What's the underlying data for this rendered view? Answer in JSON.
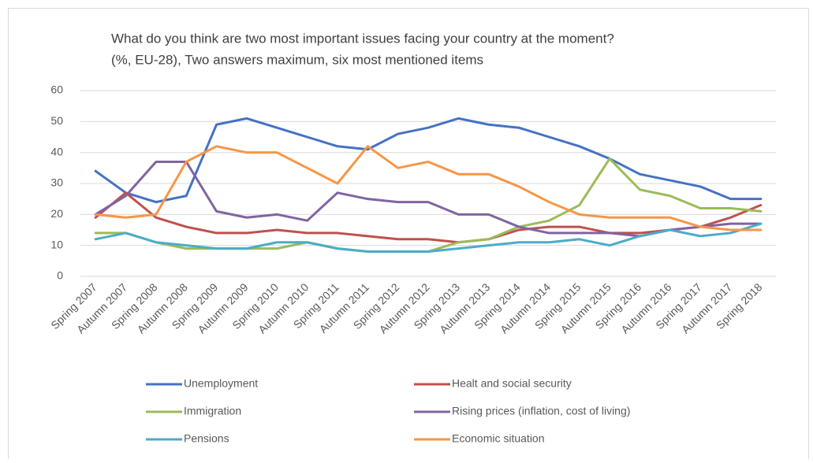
{
  "chart_data": {
    "type": "line",
    "title": "What do you think are two most important issues facing your country at the moment?",
    "subtitle": "(%, EU-28), Two answers maximum, six most mentioned items",
    "categories": [
      "Spring 2007",
      "Autumn 2007",
      "Spring 2008",
      "Autumn 2008",
      "Spring 2009",
      "Autumn 2009",
      "Spring 2010",
      "Autumn 2010",
      "Spring 2011",
      "Autumn 2011",
      "Spring 2012",
      "Autumn 2012",
      "Spring 2013",
      "Autumn 2013",
      "Spring 2014",
      "Autumn 2014",
      "Spring 2015",
      "Autumn 2015",
      "Spring 2016",
      "Autumn 2016",
      "Spring 2017",
      "Autumn 2017",
      "Spring 2018"
    ],
    "series": [
      {
        "name": "Unemployment",
        "color": "#4472c4",
        "values": [
          34,
          27,
          24,
          26,
          49,
          51,
          48,
          45,
          42,
          41,
          46,
          48,
          51,
          49,
          48,
          45,
          42,
          38,
          33,
          31,
          29,
          25,
          25
        ]
      },
      {
        "name": "Healt and social security",
        "color": "#c0504d",
        "values": [
          19,
          27,
          19,
          16,
          14,
          14,
          15,
          14,
          14,
          13,
          12,
          12,
          11,
          12,
          15,
          16,
          16,
          14,
          14,
          15,
          16,
          19,
          23
        ]
      },
      {
        "name": "Immigration",
        "color": "#9bbb59",
        "values": [
          14,
          14,
          11,
          9,
          9,
          9,
          9,
          11,
          9,
          8,
          8,
          8,
          11,
          12,
          16,
          18,
          23,
          38,
          28,
          26,
          22,
          22,
          21
        ]
      },
      {
        "name": "Rising prices (inflation, cost of living)",
        "color": "#8064a2",
        "values": [
          20,
          26,
          37,
          37,
          21,
          19,
          20,
          18,
          27,
          25,
          24,
          24,
          20,
          20,
          16,
          14,
          14,
          14,
          13,
          15,
          16,
          17,
          17
        ]
      },
      {
        "name": "Pensions",
        "color": "#4bacc6",
        "values": [
          12,
          14,
          11,
          10,
          9,
          9,
          11,
          11,
          9,
          8,
          8,
          8,
          9,
          10,
          11,
          11,
          12,
          10,
          13,
          15,
          13,
          14,
          17
        ]
      },
      {
        "name": "Economic situation",
        "color": "#f79646",
        "values": [
          20,
          19,
          20,
          37,
          42,
          40,
          40,
          35,
          30,
          42,
          35,
          37,
          33,
          33,
          29,
          24,
          20,
          19,
          19,
          19,
          16,
          15,
          15
        ]
      }
    ],
    "ylim": [
      0,
      60
    ],
    "yticks": [
      0,
      10,
      20,
      30,
      40,
      50,
      60
    ],
    "grid": true,
    "legend": "bottom"
  }
}
